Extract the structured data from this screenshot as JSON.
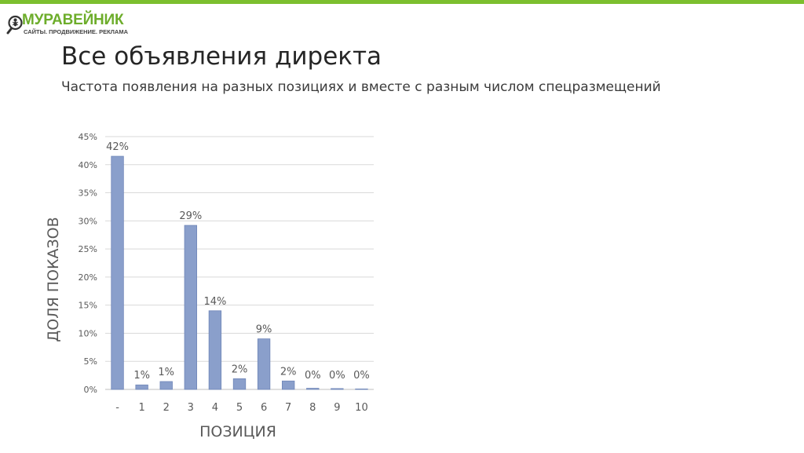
{
  "logo": {
    "name": "МУРАВЕЙНИК",
    "tagline": "САЙТЫ. ПРОДВИЖЕНИЕ. РЕКЛАМА",
    "icon": "ant-magnifier-icon"
  },
  "slide": {
    "title": "Все объявления директа",
    "subtitle": "Частота появления на разных позициях и вместе с разным числом спецразмещений"
  },
  "colors": {
    "accent": "#7cbf2e",
    "bar": "#8a9fcb",
    "bar_stroke": "#6f86b8",
    "grid": "#d9d9d9",
    "text": "#595959"
  },
  "chart_data": {
    "type": "bar",
    "xlabel": "ПОЗИЦИЯ",
    "ylabel": "ДОЛЯ ПОКАЗОВ",
    "categories": [
      "-",
      "1",
      "2",
      "3",
      "4",
      "5",
      "6",
      "7",
      "8",
      "9",
      "10"
    ],
    "values": [
      41.5,
      0.8,
      1.4,
      29.2,
      14.0,
      1.9,
      9.0,
      1.5,
      0.2,
      0.15,
      0.0
    ],
    "data_labels": [
      "42%",
      "1%",
      "1%",
      "29%",
      "14%",
      "2%",
      "9%",
      "2%",
      "0%",
      "0%",
      "0%"
    ],
    "ylim": [
      0,
      45
    ],
    "yticks": [
      0,
      5,
      10,
      15,
      20,
      25,
      30,
      35,
      40,
      45
    ],
    "ytick_labels": [
      "0%",
      "5%",
      "10%",
      "15%",
      "20%",
      "25%",
      "30%",
      "35%",
      "40%",
      "45%"
    ],
    "grid": true,
    "legend": "none"
  }
}
